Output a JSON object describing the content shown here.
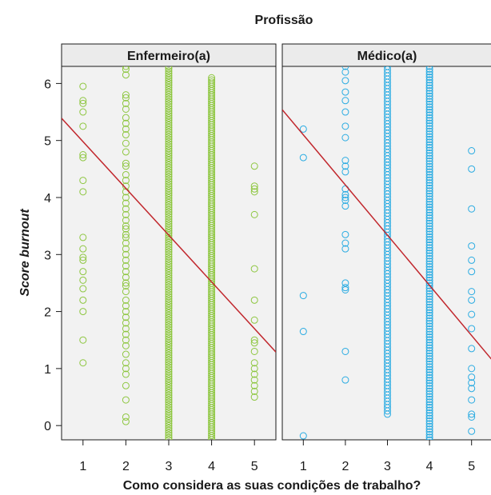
{
  "chart_data": {
    "type": "scatter",
    "title": "Profissão",
    "xlabel": "Como considera as suas condições de trabalho?",
    "ylabel_prefix": "Score ",
    "ylabel_emph": "burnout",
    "x_ticks": [
      1,
      2,
      3,
      4,
      5
    ],
    "y_ticks": [
      0,
      1,
      2,
      3,
      4,
      5,
      6
    ],
    "xlim": [
      0.5,
      5.5
    ],
    "ylim": [
      -0.25,
      6.3
    ],
    "grid": false,
    "panels": [
      {
        "name": "Enfermeiro(a)",
        "color": "#8dc63f",
        "fit": {
          "intercept": 5.8,
          "slope": -0.82
        },
        "points": {
          "1": [
            5.95,
            5.7,
            5.65,
            5.5,
            5.25,
            4.75,
            4.7,
            4.3,
            4.1,
            3.3,
            3.1,
            2.95,
            2.9,
            2.7,
            2.55,
            2.4,
            2.2,
            2.0,
            1.5,
            1.1
          ],
          "2": [
            6.3,
            6.25,
            6.15,
            5.8,
            5.75,
            5.65,
            5.55,
            5.4,
            5.3,
            5.2,
            5.1,
            4.95,
            4.8,
            4.6,
            4.55,
            4.4,
            4.3,
            4.2,
            4.1,
            4.0,
            3.9,
            3.8,
            3.7,
            3.6,
            3.5,
            3.45,
            3.35,
            3.3,
            3.2,
            3.1,
            3.0,
            2.9,
            2.8,
            2.7,
            2.6,
            2.5,
            2.45,
            2.35,
            2.2,
            2.1,
            2.0,
            1.9,
            1.8,
            1.7,
            1.6,
            1.5,
            1.4,
            1.25,
            1.1,
            1.0,
            0.9,
            0.7,
            0.45,
            0.15,
            0.07
          ],
          "5": [
            4.55,
            4.2,
            4.15,
            4.1,
            3.7,
            2.75,
            2.2,
            1.85,
            1.5,
            1.45,
            1.3,
            1.1,
            1.0,
            0.9,
            0.8,
            0.7,
            0.6,
            0.5
          ]
        },
        "dense": {
          "3": {
            "min": -0.25,
            "max": 6.3,
            "count": 160
          },
          "4": {
            "min": -0.25,
            "max": 6.1,
            "count": 170
          }
        }
      },
      {
        "name": "Médico(a)",
        "color": "#29abe2",
        "fit": {
          "intercept": 5.98,
          "slope": -0.88
        },
        "points": {
          "1": [
            5.2,
            4.7,
            2.28,
            1.65,
            -0.18
          ],
          "2": [
            6.3,
            6.2,
            6.05,
            5.85,
            5.7,
            5.5,
            5.25,
            5.05,
            4.65,
            4.55,
            4.45,
            4.15,
            4.05,
            4.0,
            3.95,
            3.85,
            3.35,
            3.2,
            3.1,
            2.5,
            2.42,
            2.38,
            1.3,
            0.8
          ],
          "5": [
            4.82,
            4.5,
            3.8,
            3.15,
            2.9,
            2.7,
            2.35,
            2.2,
            1.95,
            1.7,
            1.35,
            1.0,
            0.85,
            0.75,
            0.65,
            0.45,
            0.2,
            0.15,
            -0.1
          ]
        },
        "dense": {
          "3": {
            "min": 0.2,
            "max": 6.3,
            "count": 110
          },
          "4": {
            "min": -0.3,
            "max": 6.3,
            "count": 140
          }
        }
      }
    ]
  }
}
